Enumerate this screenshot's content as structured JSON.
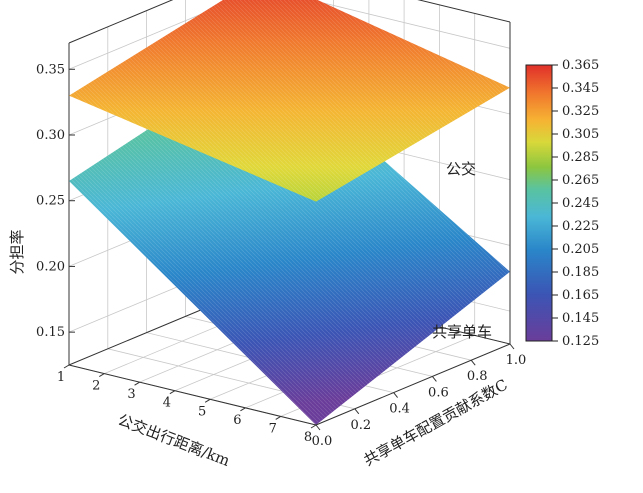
{
  "chart_data": {
    "type": "surface",
    "title": "",
    "xlabel": "公交出行距离/km",
    "ylabel": "共享单车配置贡献系数C",
    "zlabel": "分担率",
    "x_ticks": [
      "1",
      "2",
      "3",
      "4",
      "5",
      "6",
      "7",
      "8"
    ],
    "y_ticks": [
      "0.0",
      "0.2",
      "0.4",
      "0.6",
      "0.8",
      "1.0"
    ],
    "z_ticks": [
      "0.15",
      "0.20",
      "0.25",
      "0.30",
      "0.35"
    ],
    "colorbar_ticks": [
      "0.125",
      "0.145",
      "0.165",
      "0.185",
      "0.205",
      "0.225",
      "0.245",
      "0.265",
      "0.285",
      "0.305",
      "0.325",
      "0.345",
      "0.365"
    ],
    "colorbar_range": [
      0.125,
      0.365
    ],
    "colormap": [
      "#6a3d9a",
      "#3b55b5",
      "#2a86c9",
      "#4bb7d6",
      "#59c3a0",
      "#8cc63f",
      "#d8d83a",
      "#f6b333",
      "#f0752d",
      "#e0302a"
    ],
    "series": [
      {
        "name": "公交",
        "x": [
          1,
          8
        ],
        "y": [
          0.0,
          1.0
        ],
        "z": [
          [
            0.33,
            0.295
          ],
          [
            0.36,
            0.32
          ]
        ]
      },
      {
        "name": "共享单车",
        "x": [
          1,
          8
        ],
        "y": [
          0.0,
          1.0
        ],
        "z": [
          [
            0.265,
            0.125
          ],
          [
            0.3,
            0.18
          ]
        ]
      }
    ]
  }
}
